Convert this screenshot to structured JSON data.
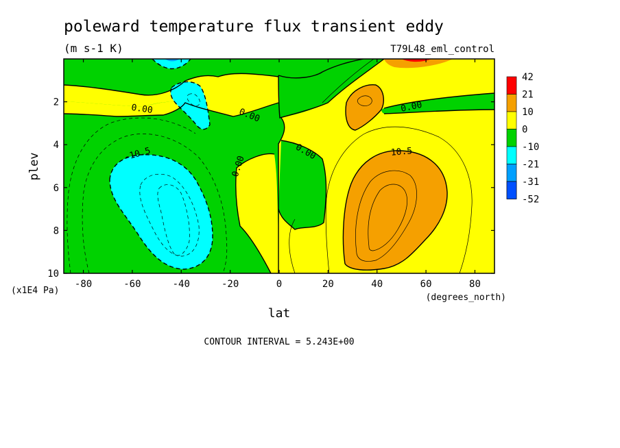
{
  "chart_data": {
    "type": "contour",
    "title": "poleward temperature flux transient eddy",
    "units": "(m s-1 K)",
    "dataset": "T79L48_eml_control",
    "xlabel": "lat",
    "x_units": "(degrees_north)",
    "ylabel": "plev",
    "y_units": "(x1E4 Pa)",
    "xlim": [
      -88,
      88
    ],
    "ylim": [
      10,
      0
    ],
    "x_ticks": [
      {
        "value": -80,
        "label": "-80"
      },
      {
        "value": -60,
        "label": "-60"
      },
      {
        "value": -40,
        "label": "-40"
      },
      {
        "value": -20,
        "label": "-20"
      },
      {
        "value": 0,
        "label": "0"
      },
      {
        "value": 20,
        "label": "20"
      },
      {
        "value": 40,
        "label": "40"
      },
      {
        "value": 60,
        "label": "60"
      },
      {
        "value": 80,
        "label": "80"
      }
    ],
    "y_ticks": [
      {
        "value": 2,
        "label": "2"
      },
      {
        "value": 4,
        "label": "4"
      },
      {
        "value": 6,
        "label": "6"
      },
      {
        "value": 8,
        "label": "8"
      },
      {
        "value": 10,
        "label": "10"
      }
    ],
    "contour_interval_text": "CONTOUR INTERVAL = 5.243E+00",
    "colorbar": [
      {
        "label": "42",
        "color": "#ff0000"
      },
      {
        "label": "21",
        "color": "#f5a000"
      },
      {
        "label": "10",
        "color": "#ffff00"
      },
      {
        "label": "0",
        "color": "#00d200"
      },
      {
        "label": "-10",
        "color": "#00ffff"
      },
      {
        "label": "-21",
        "color": "#00a0ff"
      },
      {
        "label": "-31",
        "color": "#0050ff"
      },
      {
        "label": "-52",
        "color": null
      }
    ],
    "contour_labels": [
      {
        "text": "0.00",
        "lat": -56,
        "plev": 2.3,
        "rotate": 8
      },
      {
        "text": "0.00",
        "lat": -12,
        "plev": 2.6,
        "rotate": 22
      },
      {
        "text": "0.00",
        "lat": -17,
        "plev": 5.0,
        "rotate": -72
      },
      {
        "text": "0.00",
        "lat": 11,
        "plev": 4.3,
        "rotate": 30
      },
      {
        "text": "0.00",
        "lat": 54,
        "plev": 2.2,
        "rotate": -12
      },
      {
        "text": "-10.5",
        "lat": -58,
        "plev": 4.4,
        "rotate": -15
      },
      {
        "text": "10.5",
        "lat": 50,
        "plev": 4.3,
        "rotate": -5
      }
    ]
  }
}
